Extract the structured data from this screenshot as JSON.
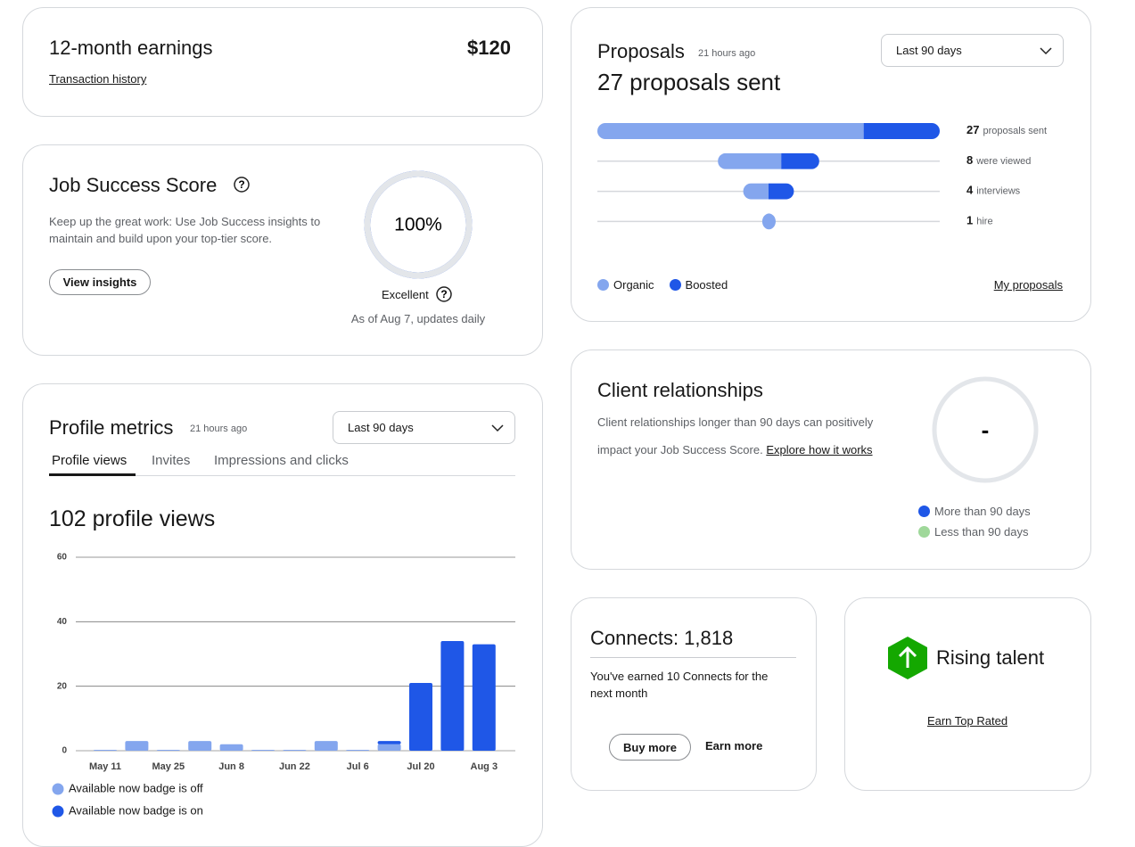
{
  "earnings": {
    "title": "12-month earnings",
    "amount": "$120",
    "link": "Transaction history"
  },
  "job_success": {
    "title": "Job Success Score",
    "description": "Keep up the great work: Use Job Success insights to maintain and build upon your top-tier score.",
    "button": "View insights",
    "score": {
      "value": 100,
      "label": "100%"
    },
    "rating": "Excellent",
    "note": "As of Aug 7, updates daily"
  },
  "profile_metrics": {
    "title": "Profile metrics",
    "updated": "21 hours ago",
    "period": "Last 90 days",
    "tabs": [
      "Profile views",
      "Invites",
      "Impressions and clicks"
    ],
    "headline": "102 profile views",
    "chart_data": {
      "type": "bar",
      "stacked": true,
      "categories": [
        "May 11",
        null,
        "May 25",
        null,
        "Jun 8",
        null,
        "Jun 22",
        null,
        "Jul 6",
        null,
        "Jul 20",
        null,
        "Aug 3"
      ],
      "series": [
        {
          "name": "Available now badge is off",
          "color": "#84a6ee",
          "values": [
            0,
            3,
            0,
            3,
            2,
            0,
            0,
            3,
            0,
            2,
            0,
            0,
            0
          ]
        },
        {
          "name": "Available now badge is on",
          "color": "#1f57e7",
          "values": [
            0,
            0,
            0,
            0,
            0,
            0,
            0,
            0,
            0,
            1,
            21,
            34,
            33
          ]
        }
      ],
      "ylim": [
        0,
        60
      ],
      "yticks": [
        0,
        20,
        40,
        60
      ],
      "grid": true
    }
  },
  "proposals": {
    "title": "Proposals",
    "updated": "21 hours ago",
    "period": "Last 90 days",
    "headline": "27 proposals sent",
    "funnel": [
      {
        "count": 27,
        "label": "proposals sent",
        "organic": 21,
        "boosted": 6
      },
      {
        "count": 8,
        "label": "were viewed",
        "organic": 5,
        "boosted": 3
      },
      {
        "count": 4,
        "label": "interviews",
        "organic": 2,
        "boosted": 2
      },
      {
        "count": 1,
        "label": "hire",
        "organic": 1,
        "boosted": 0
      }
    ],
    "legend": [
      {
        "name": "Organic",
        "color": "#84a6ee"
      },
      {
        "name": "Boosted",
        "color": "#1f57e7"
      }
    ],
    "link": "My proposals"
  },
  "client_relationships": {
    "title": "Client relationships",
    "description": "Client relationships longer than 90 days can positively impact your Job Success Score.",
    "link": "Explore how it works",
    "value": "-",
    "legend": [
      {
        "name": "More than 90 days",
        "color": "#1f57e7"
      },
      {
        "name": "Less than 90 days",
        "color": "#9fd89a"
      }
    ]
  },
  "connects": {
    "title": "Connects: 1,818",
    "text": "You've earned 10 Connects for the next month",
    "button": "Buy more",
    "link": "Earn more"
  },
  "rising_talent": {
    "title": "Rising talent",
    "link": "Earn Top Rated"
  }
}
